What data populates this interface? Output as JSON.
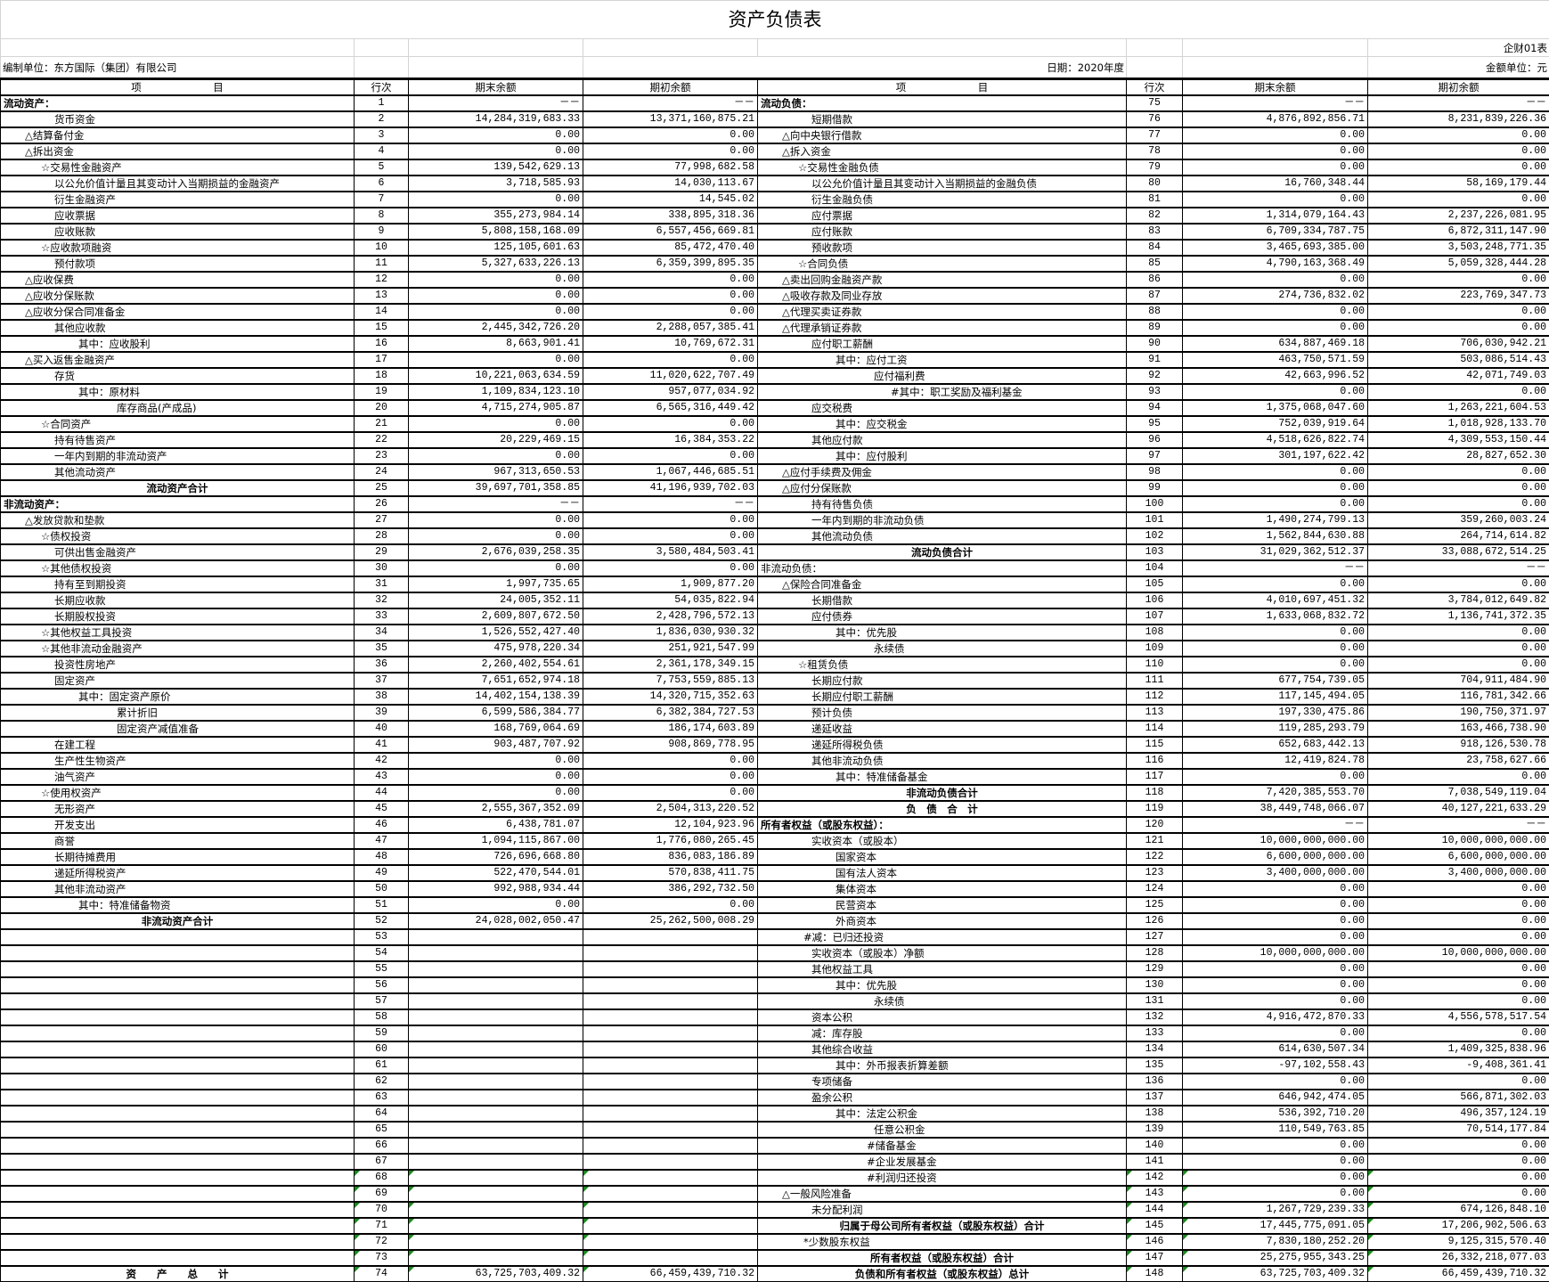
{
  "title": "资产负债表",
  "form_code": "企财01表",
  "company": "编制单位：东方国际（集团）有限公司",
  "date": "日期：2020年度",
  "unit": "金额单位：元",
  "headers": {
    "item": "项　　　　　　　目",
    "line": "行次",
    "end": "期末余额",
    "begin": "期初余额"
  },
  "colors": {
    "grid": "#000000",
    "light_grid": "#d4d4d4",
    "note_marker": "#1a8a1a"
  },
  "left": [
    [
      "流动资产：",
      "1",
      "－－",
      "－－",
      "h"
    ],
    [
      "货币资金",
      "2",
      "14,284,319,683.33",
      "13,371,160,875.21",
      "n"
    ],
    [
      "△结算备付金",
      "3",
      "0.00",
      "0.00",
      "d"
    ],
    [
      "△拆出资金",
      "4",
      "0.00",
      "0.00",
      "d"
    ],
    [
      "☆交易性金融资产",
      "5",
      "139,542,629.13",
      "77,998,682.58",
      "s"
    ],
    [
      "以公允价值计量且其变动计入当期损益的金融资产",
      "6",
      "3,718,585.93",
      "14,030,113.67",
      "n"
    ],
    [
      "衍生金融资产",
      "7",
      "0.00",
      "14,545.02",
      "n"
    ],
    [
      "应收票据",
      "8",
      "355,273,984.14",
      "338,895,318.36",
      "n"
    ],
    [
      "应收账款",
      "9",
      "5,808,158,168.09",
      "6,557,456,669.81",
      "n"
    ],
    [
      "☆应收款项融资",
      "10",
      "125,105,601.63",
      "85,472,470.40",
      "s"
    ],
    [
      "预付款项",
      "11",
      "5,327,633,226.13",
      "6,359,399,895.35",
      "n"
    ],
    [
      "△应收保费",
      "12",
      "0.00",
      "0.00",
      "d"
    ],
    [
      "△应收分保账款",
      "13",
      "0.00",
      "0.00",
      "d"
    ],
    [
      "△应收分保合同准备金",
      "14",
      "0.00",
      "0.00",
      "d"
    ],
    [
      "其他应收款",
      "15",
      "2,445,342,726.20",
      "2,288,057,385.41",
      "n"
    ],
    [
      "其中：应收股利",
      "16",
      "8,663,901.41",
      "10,769,672.31",
      "q"
    ],
    [
      "△买入返售金融资产",
      "17",
      "0.00",
      "0.00",
      "d"
    ],
    [
      "存货",
      "18",
      "10,221,063,634.59",
      "11,020,622,707.49",
      "n"
    ],
    [
      "其中：原材料",
      "19",
      "1,109,834,123.10",
      "957,077,034.92",
      "q"
    ],
    [
      "库存商品(产成品)",
      "20",
      "4,715,274,905.87",
      "6,565,316,449.42",
      "q2"
    ],
    [
      "☆合同资产",
      "21",
      "0.00",
      "0.00",
      "s"
    ],
    [
      "持有待售资产",
      "22",
      "20,229,469.15",
      "16,384,353.22",
      "n"
    ],
    [
      "一年内到期的非流动资产",
      "23",
      "0.00",
      "0.00",
      "n"
    ],
    [
      "其他流动资产",
      "24",
      "967,313,650.53",
      "1,067,446,685.51",
      "n"
    ],
    [
      "流动资产合计",
      "25",
      "39,697,701,358.85",
      "41,196,939,702.03",
      "t"
    ],
    [
      "非流动资产：",
      "26",
      "－－",
      "－－",
      "h"
    ],
    [
      "△发放贷款和垫款",
      "27",
      "0.00",
      "0.00",
      "d"
    ],
    [
      "☆债权投资",
      "28",
      "0.00",
      "0.00",
      "s"
    ],
    [
      "可供出售金融资产",
      "29",
      "2,676,039,258.35",
      "3,580,484,503.41",
      "n"
    ],
    [
      "☆其他债权投资",
      "30",
      "0.00",
      "0.00",
      "s"
    ],
    [
      "持有至到期投资",
      "31",
      "1,997,735.65",
      "1,909,877.20",
      "n"
    ],
    [
      "长期应收款",
      "32",
      "24,005,352.11",
      "54,035,822.94",
      "n"
    ],
    [
      "长期股权投资",
      "33",
      "2,609,807,672.50",
      "2,428,796,572.13",
      "n"
    ],
    [
      "☆其他权益工具投资",
      "34",
      "1,526,552,427.40",
      "1,836,030,930.32",
      "s"
    ],
    [
      "☆其他非流动金融资产",
      "35",
      "475,978,220.34",
      "251,921,547.99",
      "s"
    ],
    [
      "投资性房地产",
      "36",
      "2,260,402,554.61",
      "2,361,178,349.15",
      "n"
    ],
    [
      "固定资产",
      "37",
      "7,651,652,974.18",
      "7,753,559,885.13",
      "n"
    ],
    [
      "其中：固定资产原价",
      "38",
      "14,402,154,138.39",
      "14,320,715,352.63",
      "q"
    ],
    [
      "累计折旧",
      "39",
      "6,599,586,384.77",
      "6,382,384,727.53",
      "q2"
    ],
    [
      "固定资产减值准备",
      "40",
      "168,769,064.69",
      "186,174,603.89",
      "q2"
    ],
    [
      "在建工程",
      "41",
      "903,487,707.92",
      "908,869,778.95",
      "n"
    ],
    [
      "生产性生物资产",
      "42",
      "0.00",
      "0.00",
      "n"
    ],
    [
      "油气资产",
      "43",
      "0.00",
      "0.00",
      "n"
    ],
    [
      "☆使用权资产",
      "44",
      "0.00",
      "0.00",
      "s"
    ],
    [
      "无形资产",
      "45",
      "2,555,367,352.09",
      "2,504,313,220.52",
      "n"
    ],
    [
      "开发支出",
      "46",
      "6,438,781.07",
      "12,104,923.96",
      "n"
    ],
    [
      "商誉",
      "47",
      "1,094,115,867.00",
      "1,776,080,265.45",
      "n"
    ],
    [
      "长期待摊费用",
      "48",
      "726,696,668.80",
      "836,083,186.89",
      "n"
    ],
    [
      "递延所得税资产",
      "49",
      "522,470,544.01",
      "570,838,411.75",
      "n"
    ],
    [
      "其他非流动资产",
      "50",
      "992,988,934.44",
      "386,292,732.50",
      "n"
    ],
    [
      "其中：特准储备物资",
      "51",
      "0.00",
      "0.00",
      "q"
    ],
    [
      "非流动资产合计",
      "52",
      "24,028,002,050.47",
      "25,262,500,008.29",
      "t"
    ],
    [
      "",
      "53",
      "",
      "",
      ""
    ],
    [
      "",
      "54",
      "",
      "",
      ""
    ],
    [
      "",
      "55",
      "",
      "",
      ""
    ],
    [
      "",
      "56",
      "",
      "",
      ""
    ],
    [
      "",
      "57",
      "",
      "",
      ""
    ],
    [
      "",
      "58",
      "",
      "",
      ""
    ],
    [
      "",
      "59",
      "",
      "",
      ""
    ],
    [
      "",
      "60",
      "",
      "",
      ""
    ],
    [
      "",
      "61",
      "",
      "",
      ""
    ],
    [
      "",
      "62",
      "",
      "",
      ""
    ],
    [
      "",
      "63",
      "",
      "",
      ""
    ],
    [
      "",
      "64",
      "",
      "",
      ""
    ],
    [
      "",
      "65",
      "",
      "",
      ""
    ],
    [
      "",
      "66",
      "",
      "",
      ""
    ],
    [
      "",
      "67",
      "",
      "",
      ""
    ],
    [
      "",
      "68",
      "",
      "",
      ""
    ],
    [
      "",
      "69",
      "",
      "",
      ""
    ],
    [
      "",
      "70",
      "",
      "",
      ""
    ],
    [
      "",
      "71",
      "",
      "",
      ""
    ],
    [
      "",
      "72",
      "",
      "",
      ""
    ],
    [
      "",
      "73",
      "",
      "",
      ""
    ],
    [
      "资　　产　　总　　计",
      "74",
      "63,725,703,409.32",
      "66,459,439,710.32",
      "t"
    ]
  ],
  "right": [
    [
      "流动负债：",
      "75",
      "－－",
      "－－",
      "h"
    ],
    [
      "短期借款",
      "76",
      "4,876,892,856.71",
      "8,231,839,226.36",
      "n"
    ],
    [
      "△向中央银行借款",
      "77",
      "0.00",
      "0.00",
      "d"
    ],
    [
      "△拆入资金",
      "78",
      "0.00",
      "0.00",
      "d"
    ],
    [
      "☆交易性金融负债",
      "79",
      "0.00",
      "0.00",
      "s"
    ],
    [
      "以公允价值计量且其变动计入当期损益的金融负债",
      "80",
      "16,760,348.44",
      "58,169,179.44",
      "n"
    ],
    [
      "衍生金融负债",
      "81",
      "0.00",
      "0.00",
      "n"
    ],
    [
      "应付票据",
      "82",
      "1,314,079,164.43",
      "2,237,226,081.95",
      "n"
    ],
    [
      "应付账款",
      "83",
      "6,709,334,787.75",
      "6,872,311,147.90",
      "n"
    ],
    [
      "预收款项",
      "84",
      "3,465,693,385.00",
      "3,503,248,771.35",
      "n"
    ],
    [
      "☆合同负债",
      "85",
      "4,790,163,368.49",
      "5,059,328,444.28",
      "s"
    ],
    [
      "△卖出回购金融资产款",
      "86",
      "0.00",
      "0.00",
      "d"
    ],
    [
      "△吸收存款及同业存放",
      "87",
      "274,736,832.02",
      "223,769,347.73",
      "d"
    ],
    [
      "△代理买卖证券款",
      "88",
      "0.00",
      "0.00",
      "d"
    ],
    [
      "△代理承销证券款",
      "89",
      "0.00",
      "0.00",
      "d"
    ],
    [
      "应付职工薪酬",
      "90",
      "634,887,469.18",
      "706,030,942.21",
      "n"
    ],
    [
      "其中：应付工资",
      "91",
      "463,750,571.59",
      "503,086,514.43",
      "q"
    ],
    [
      "应付福利费",
      "92",
      "42,663,996.52",
      "42,071,749.03",
      "q2"
    ],
    [
      "#其中：职工奖励及福利基金",
      "93",
      "0.00",
      "0.00",
      "p"
    ],
    [
      "应交税费",
      "94",
      "1,375,068,047.60",
      "1,263,221,604.53",
      "n"
    ],
    [
      "其中：应交税金",
      "95",
      "752,039,919.64",
      "1,018,928,133.70",
      "q"
    ],
    [
      "其他应付款",
      "96",
      "4,518,626,822.74",
      "4,309,553,150.44",
      "n"
    ],
    [
      "其中：应付股利",
      "97",
      "301,197,622.42",
      "28,827,652.30",
      "q"
    ],
    [
      "△应付手续费及佣金",
      "98",
      "0.00",
      "0.00",
      "d"
    ],
    [
      "△应付分保账款",
      "99",
      "0.00",
      "0.00",
      "d"
    ],
    [
      "持有待售负债",
      "100",
      "0.00",
      "0.00",
      "n"
    ],
    [
      "一年内到期的非流动负债",
      "101",
      "1,490,274,799.13",
      "359,260,003.24",
      "n"
    ],
    [
      "其他流动负债",
      "102",
      "1,562,844,630.88",
      "264,714,614.82",
      "n"
    ],
    [
      "流动负债合计",
      "103",
      "31,029,362,512.37",
      "33,088,672,514.25",
      "t"
    ],
    [
      "非流动负债：",
      "104",
      "－－",
      "－－",
      "h2"
    ],
    [
      "△保险合同准备金",
      "105",
      "0.00",
      "0.00",
      "d"
    ],
    [
      "长期借款",
      "106",
      "4,010,697,451.32",
      "3,784,012,649.82",
      "n"
    ],
    [
      "应付债券",
      "107",
      "1,633,068,832.72",
      "1,136,741,372.35",
      "n"
    ],
    [
      "其中：优先股",
      "108",
      "0.00",
      "0.00",
      "q"
    ],
    [
      "永续债",
      "109",
      "0.00",
      "0.00",
      "q2"
    ],
    [
      "☆租赁负债",
      "110",
      "0.00",
      "0.00",
      "s"
    ],
    [
      "长期应付款",
      "111",
      "677,754,739.05",
      "704,911,484.90",
      "n"
    ],
    [
      "长期应付职工薪酬",
      "112",
      "117,145,494.05",
      "116,781,342.66",
      "n"
    ],
    [
      "预计负债",
      "113",
      "197,330,475.86",
      "190,750,371.97",
      "n"
    ],
    [
      "递延收益",
      "114",
      "119,285,293.79",
      "163,466,738.90",
      "n"
    ],
    [
      "递延所得税负债",
      "115",
      "652,683,442.13",
      "918,126,530.78",
      "n"
    ],
    [
      "其他非流动负债",
      "116",
      "12,419,824.78",
      "23,758,627.66",
      "n"
    ],
    [
      "其中：特准储备基金",
      "117",
      "0.00",
      "0.00",
      "q"
    ],
    [
      "非流动负债合计",
      "118",
      "7,420,385,553.70",
      "7,038,549,119.04",
      "t"
    ],
    [
      "负　债　合　计",
      "119",
      "38,449,748,066.07",
      "40,127,221,633.29",
      "t"
    ],
    [
      "所有者权益（或股东权益）：",
      "120",
      "－－",
      "－－",
      "h"
    ],
    [
      "实收资本（或股本）",
      "121",
      "10,000,000,000.00",
      "10,000,000,000.00",
      "n"
    ],
    [
      "国家资本",
      "122",
      "6,600,000,000.00",
      "6,600,000,000.00",
      "q"
    ],
    [
      "国有法人资本",
      "123",
      "3,400,000,000.00",
      "3,400,000,000.00",
      "q"
    ],
    [
      "集体资本",
      "124",
      "0.00",
      "0.00",
      "q"
    ],
    [
      "民营资本",
      "125",
      "0.00",
      "0.00",
      "q"
    ],
    [
      "外商资本",
      "126",
      "0.00",
      "0.00",
      "q"
    ],
    [
      "#减：已归还投资",
      "127",
      "0.00",
      "0.00",
      "x"
    ],
    [
      "实收资本（或股本）净额",
      "128",
      "10,000,000,000.00",
      "10,000,000,000.00",
      "n"
    ],
    [
      "其他权益工具",
      "129",
      "0.00",
      "0.00",
      "n"
    ],
    [
      "其中：优先股",
      "130",
      "0.00",
      "0.00",
      "q"
    ],
    [
      "永续债",
      "131",
      "0.00",
      "0.00",
      "q2"
    ],
    [
      "资本公积",
      "132",
      "4,916,472,870.33",
      "4,556,578,517.54",
      "n"
    ],
    [
      "减：库存股",
      "133",
      "0.00",
      "0.00",
      "n"
    ],
    [
      "其他综合收益",
      "134",
      "614,630,507.34",
      "1,409,325,838.96",
      "n"
    ],
    [
      "其中：外币报表折算差额",
      "135",
      "-97,102,558.43",
      "-9,408,361.41",
      "q"
    ],
    [
      "专项储备",
      "136",
      "0.00",
      "0.00",
      "n"
    ],
    [
      "盈余公积",
      "137",
      "646,942,474.05",
      "566,871,302.03",
      "n"
    ],
    [
      "其中：法定公积金",
      "138",
      "536,392,710.20",
      "496,357,124.19",
      "q"
    ],
    [
      "任意公积金",
      "139",
      "110,549,763.85",
      "70,514,177.84",
      "q2"
    ],
    [
      "#储备基金",
      "140",
      "0.00",
      "0.00",
      "r"
    ],
    [
      "#企业发展基金",
      "141",
      "0.00",
      "0.00",
      "r"
    ],
    [
      "#利润归还投资",
      "142",
      "0.00",
      "0.00",
      "r"
    ],
    [
      "△一般风险准备",
      "143",
      "0.00",
      "0.00",
      "d"
    ],
    [
      "未分配利润",
      "144",
      "1,267,729,239.33",
      "674,126,848.10",
      "n"
    ],
    [
      "归属于母公司所有者权益（或股东权益）合计",
      "145",
      "17,445,775,091.05",
      "17,206,902,506.63",
      "t"
    ],
    [
      "*少数股东权益",
      "146",
      "7,830,180,252.20",
      "9,125,315,570.40",
      "x"
    ],
    [
      "所有者权益（或股东权益）合计",
      "147",
      "25,275,955,343.25",
      "26,332,218,077.03",
      "t"
    ],
    [
      "负债和所有者权益（或股东权益）总计",
      "148",
      "63,725,703,409.32",
      "66,459,439,710.32",
      "t"
    ]
  ]
}
